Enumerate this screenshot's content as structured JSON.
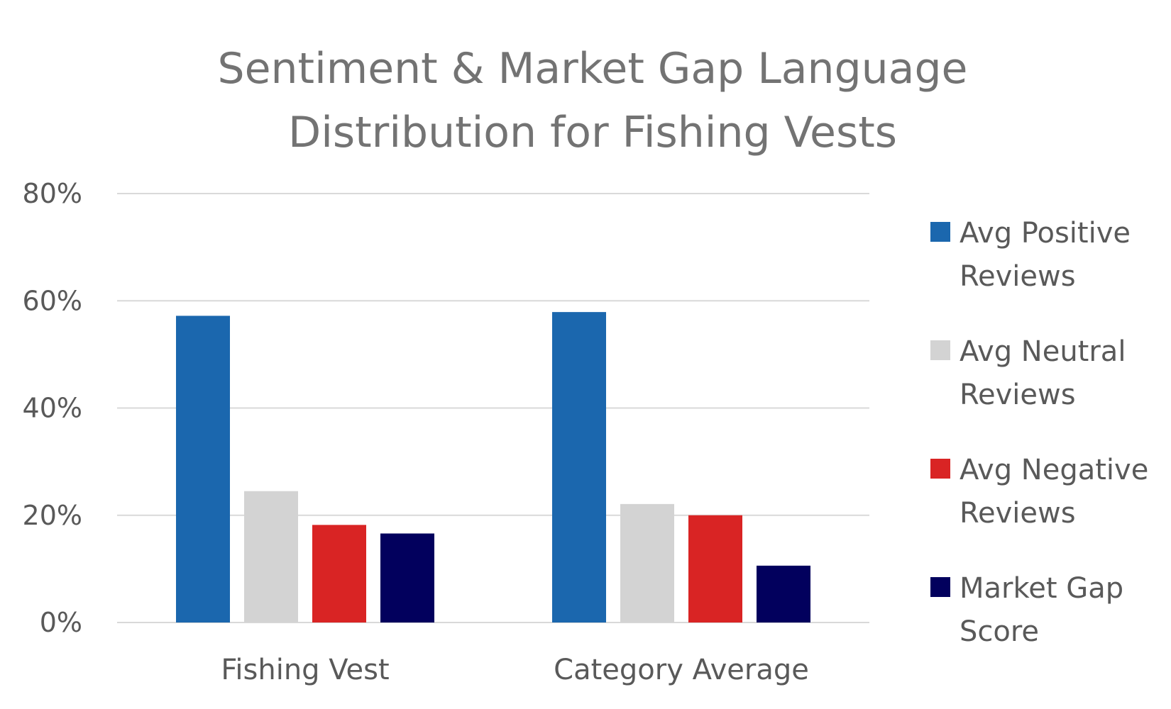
{
  "chart_data": {
    "type": "bar",
    "title_lines": [
      "Sentiment & Market Gap Language",
      "Distribution for Fishing Vests"
    ],
    "xlabel": "",
    "ylabel": "",
    "categories": [
      "Fishing Vest",
      "Category Average"
    ],
    "ylim": [
      0,
      80
    ],
    "yticks": [
      0,
      20,
      40,
      60,
      80
    ],
    "ytick_labels": [
      "0%",
      "20%",
      "40%",
      "60%",
      "80%"
    ],
    "grid": true,
    "legend_position": "right",
    "series": [
      {
        "name_lines": [
          "Avg Positive",
          "Reviews"
        ],
        "color": "#1b67ae",
        "values": [
          57.2,
          57.9
        ]
      },
      {
        "name_lines": [
          "Avg Neutral",
          "Reviews"
        ],
        "color": "#d3d3d3",
        "values": [
          24.5,
          22.1
        ]
      },
      {
        "name_lines": [
          "Avg Negative",
          "Reviews"
        ],
        "color": "#d92424",
        "values": [
          18.2,
          20.0
        ]
      },
      {
        "name_lines": [
          "Market Gap",
          "Score"
        ],
        "color": "#02005d",
        "values": [
          16.6,
          10.6
        ]
      }
    ]
  }
}
